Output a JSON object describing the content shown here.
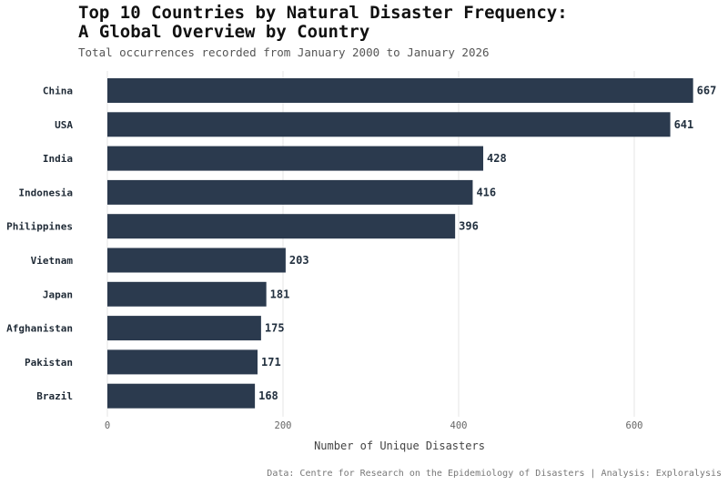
{
  "chart_data": {
    "type": "bar",
    "orientation": "horizontal",
    "title_lines": [
      "Top 10 Countries by Natural Disaster Frequency:",
      "A Global Overview by Country"
    ],
    "subtitle": "Total occurrences recorded from January 2000 to January 2026",
    "categories": [
      "China",
      "USA",
      "India",
      "Indonesia",
      "Philippines",
      "Vietnam",
      "Japan",
      "Afghanistan",
      "Pakistan",
      "Brazil"
    ],
    "values": [
      667,
      641,
      428,
      416,
      396,
      203,
      181,
      175,
      171,
      168
    ],
    "xlabel": "Number of Unique Disasters",
    "ylabel": "",
    "xlim": [
      0,
      690
    ],
    "xticks": [
      0,
      200,
      400,
      600
    ],
    "grid": "vertical",
    "bar_color": "#2b3a4e",
    "caption": "Data: Centre for Research on the Epidemiology of Disasters | Analysis: Exploralysis"
  }
}
